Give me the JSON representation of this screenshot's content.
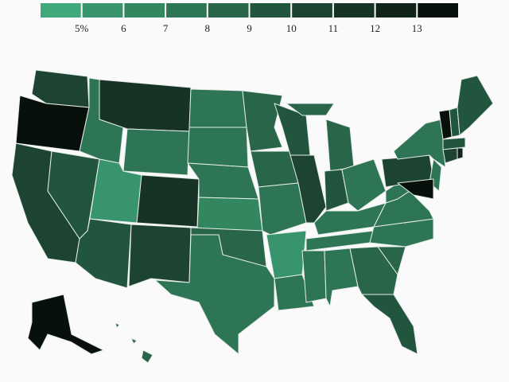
{
  "chart_data": {
    "type": "choropleth",
    "legend": {
      "colors": [
        "#3fa97c",
        "#38946c",
        "#33875f",
        "#2d7554",
        "#286549",
        "#22553e",
        "#1d4432",
        "#163326",
        "#10241a",
        "#07100b"
      ],
      "ticks": [
        {
          "value": 5,
          "label": "5%"
        },
        6,
        7,
        8,
        9,
        10,
        11,
        12,
        13
      ]
    },
    "values": [
      10.5,
      13.5,
      10.5,
      9.5,
      7.5,
      11.5,
      7.5,
      5.5,
      9.5,
      11.5,
      10.5,
      7.5,
      7.5,
      7.5,
      6.5,
      8.5,
      7.5,
      8.5,
      8.5,
      7.5,
      5.5,
      7.5,
      9.5,
      10.5,
      8.5,
      9.5,
      7.5,
      7.5,
      7.5,
      7.5,
      7.5,
      8.5,
      9.5,
      8.5,
      7.5,
      7.5,
      7.5,
      10.5,
      7.5,
      7.5,
      13.5,
      9.5,
      9.5,
      9.5,
      10.5,
      12.5,
      13.5,
      8.5
    ]
  }
}
